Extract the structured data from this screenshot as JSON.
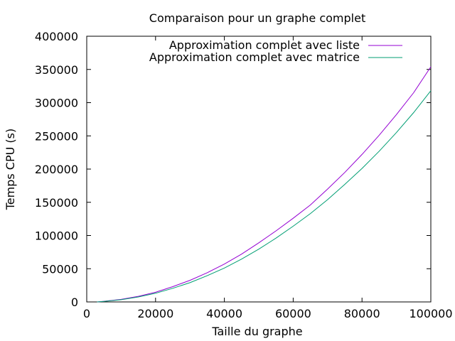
{
  "chart_data": {
    "type": "line",
    "title": "Comparaison pour un graphe complet",
    "xlabel": "Taille du graphe",
    "ylabel": "Temps CPU (s)",
    "xlim": [
      0,
      100000
    ],
    "ylim": [
      0,
      400000
    ],
    "xticks": [
      0,
      20000,
      40000,
      60000,
      80000,
      100000
    ],
    "yticks": [
      0,
      50000,
      100000,
      150000,
      200000,
      250000,
      300000,
      350000,
      400000
    ],
    "xtick_labels": [
      "0",
      "20000",
      "40000",
      "60000",
      "80000",
      "100000"
    ],
    "ytick_labels": [
      "0",
      "50000",
      "100000",
      "150000",
      "200000",
      "250000",
      "300000",
      "350000",
      "400000"
    ],
    "grid": false,
    "legend_position": "top-right",
    "series": [
      {
        "name": "Approximation complet avec liste",
        "color": "#9400d3",
        "x": [
          3000,
          5000,
          10000,
          15000,
          20000,
          25000,
          30000,
          35000,
          40000,
          45000,
          50000,
          55000,
          60000,
          65000,
          70000,
          75000,
          80000,
          85000,
          90000,
          95000,
          100000
        ],
        "y": [
          0,
          1000,
          3800,
          8500,
          14500,
          23000,
          32500,
          44000,
          57000,
          72000,
          89000,
          107000,
          126000,
          146000,
          170000,
          195000,
          222000,
          251000,
          282000,
          315000,
          354000
        ]
      },
      {
        "name": "Approximation complet avec matrice",
        "color": "#009e73",
        "x": [
          3000,
          5000,
          10000,
          15000,
          20000,
          25000,
          30000,
          35000,
          40000,
          45000,
          50000,
          55000,
          60000,
          65000,
          70000,
          75000,
          80000,
          85000,
          90000,
          95000,
          100000
        ],
        "y": [
          0,
          800,
          3300,
          7500,
          13000,
          20500,
          29000,
          39500,
          51000,
          64500,
          79500,
          96000,
          114000,
          133000,
          154000,
          177000,
          201000,
          227000,
          255000,
          285000,
          318000
        ]
      }
    ]
  }
}
